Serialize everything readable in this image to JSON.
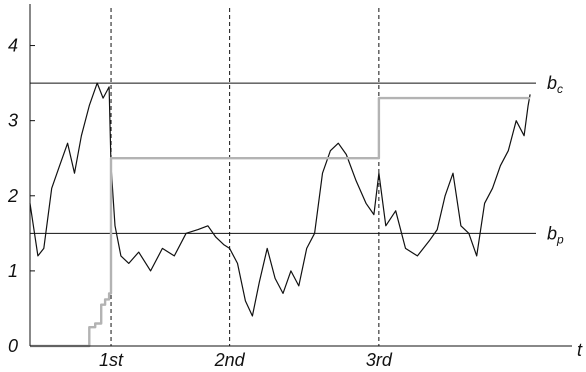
{
  "chart_data": {
    "type": "line",
    "title": "",
    "xlabel": "t",
    "ylabel": "",
    "xlim": [
      0,
      512
    ],
    "ylim": [
      0,
      4.5
    ],
    "yticks": [
      {
        "value": 0,
        "label": "0"
      },
      {
        "value": 1,
        "label": "1"
      },
      {
        "value": 2,
        "label": "2"
      },
      {
        "value": 3,
        "label": "3"
      },
      {
        "value": 4,
        "label": "4"
      }
    ],
    "xticks": [
      {
        "value": 82,
        "label": "1st"
      },
      {
        "value": 202,
        "label": "2nd"
      },
      {
        "value": 353,
        "label": "3rd"
      }
    ],
    "vlines": [
      82,
      202,
      353
    ],
    "hlines": [
      {
        "value": 3.5,
        "label_main": "b",
        "label_sub": "c"
      },
      {
        "value": 1.5,
        "label_main": "b",
        "label_sub": "p"
      }
    ],
    "series": [
      {
        "color": "#111111",
        "x": [
          0,
          8,
          14,
          22,
          30,
          38,
          45,
          52,
          60,
          68,
          74,
          80,
          82,
          86,
          92,
          100,
          110,
          122,
          134,
          146,
          158,
          170,
          180,
          188,
          196,
          202,
          210,
          218,
          225,
          232,
          240,
          248,
          256,
          264,
          272,
          280,
          288,
          296,
          304,
          312,
          320,
          330,
          340,
          348,
          353,
          360,
          370,
          380,
          392,
          404,
          412,
          420,
          428,
          436,
          444,
          452,
          460,
          468,
          476,
          484,
          492,
          500,
          504,
          506
        ],
        "y": [
          1.9,
          1.2,
          1.3,
          2.1,
          2.4,
          2.7,
          2.3,
          2.8,
          3.2,
          3.5,
          3.3,
          3.45,
          2.4,
          1.6,
          1.2,
          1.1,
          1.25,
          1.0,
          1.3,
          1.2,
          1.5,
          1.55,
          1.6,
          1.45,
          1.35,
          1.3,
          1.1,
          0.6,
          0.4,
          0.85,
          1.3,
          0.9,
          0.7,
          1.0,
          0.8,
          1.3,
          1.5,
          2.3,
          2.6,
          2.7,
          2.55,
          2.2,
          1.9,
          1.75,
          2.3,
          1.6,
          1.8,
          1.3,
          1.2,
          1.4,
          1.55,
          2.0,
          2.3,
          1.6,
          1.5,
          1.2,
          1.9,
          2.1,
          2.4,
          2.6,
          3.0,
          2.8,
          3.2,
          3.35
        ]
      },
      {
        "color": "#b3b3b3",
        "x": [
          0,
          56,
          60,
          60,
          66,
          66,
          72,
          72,
          76,
          76,
          80,
          80,
          82,
          82,
          353,
          353,
          506
        ],
        "y": [
          0,
          0,
          0,
          0.25,
          0.25,
          0.3,
          0.3,
          0.55,
          0.55,
          0.62,
          0.62,
          0.7,
          0.7,
          2.5,
          2.5,
          3.3,
          3.3
        ]
      }
    ]
  }
}
